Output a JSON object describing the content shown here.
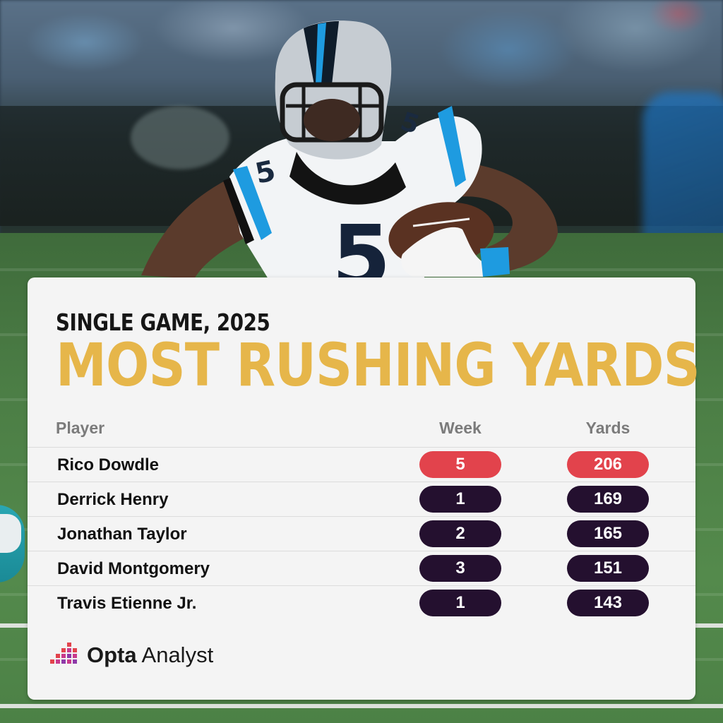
{
  "header": {
    "kicker": "SINGLE GAME, 2025",
    "headline": "MOST RUSHING YARDS"
  },
  "table": {
    "columns": [
      "Player",
      "Week",
      "Yards"
    ],
    "rows": [
      {
        "player": "Rico Dowdle",
        "week": "5",
        "yards": "206",
        "highlight": true
      },
      {
        "player": "Derrick Henry",
        "week": "1",
        "yards": "169",
        "highlight": false
      },
      {
        "player": "Jonathan Taylor",
        "week": "2",
        "yards": "165",
        "highlight": false
      },
      {
        "player": "David Montgomery",
        "week": "3",
        "yards": "151",
        "highlight": false
      },
      {
        "player": "Travis Etienne Jr.",
        "week": "1",
        "yards": "143",
        "highlight": false
      }
    ]
  },
  "brand": {
    "name_bold": "Opta",
    "name_rest": " Analyst",
    "logo_icon": "opta-bars-logo-icon"
  },
  "photo": {
    "jersey_number": "5",
    "subject_icon": "football-player-photo"
  },
  "colors": {
    "headline": "#e6b64a",
    "highlight_pill": "#e2434c",
    "pill": "#24102f",
    "card": "#f4f4f4",
    "team_blue": "#1e9be0"
  }
}
